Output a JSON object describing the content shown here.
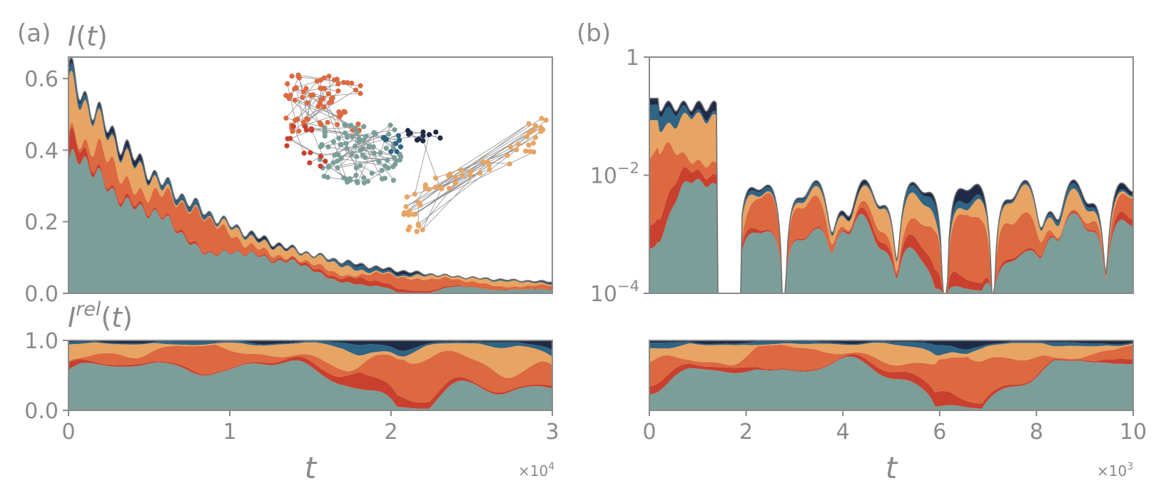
{
  "colors": {
    "teal": "#7b9e99",
    "navy": "#1f2a47",
    "blue": "#2e6484",
    "red": "#c9402e",
    "orange": "#dc6940",
    "lightorange": "#e7a463",
    "axis": "#8a8a8a",
    "edge": "#8f8f8f"
  },
  "chart_data": [
    {
      "id": "a-top",
      "panel_label": "(a)",
      "type": "area",
      "stacked": true,
      "ylabel": "I(t)",
      "ylabel_parts": [
        "I",
        "(",
        "t",
        ")"
      ],
      "xlim": [
        0,
        3
      ],
      "ylim": [
        0,
        0.66
      ],
      "yticks": [
        0.0,
        0.2,
        0.4,
        0.6
      ],
      "ytick_labels": [
        "0.0",
        "0.2",
        "0.4",
        "0.6"
      ],
      "envelope": {
        "peak": 0.62,
        "value_at_end": 0.015
      },
      "series_order": [
        "teal",
        "red",
        "orange",
        "lightorange",
        "blue",
        "navy"
      ],
      "inset": {
        "type": "network",
        "clusters": [
          {
            "color": "orange",
            "nodes": 70
          },
          {
            "color": "teal",
            "nodes": 90
          },
          {
            "color": "red",
            "nodes": 14
          },
          {
            "color": "blue",
            "nodes": 10
          },
          {
            "color": "navy",
            "nodes": 12
          },
          {
            "color": "lightorange",
            "nodes": 60
          }
        ]
      }
    },
    {
      "id": "a-bottom",
      "type": "area",
      "stacked": true,
      "normalized": true,
      "ylabel": "Irel(t)",
      "ylabel_parts": [
        "I",
        "rel",
        "(",
        "t",
        ")"
      ],
      "xlabel": "t",
      "xlim": [
        0,
        3
      ],
      "ylim": [
        0,
        1
      ],
      "yticks": [
        0.0,
        1.0
      ],
      "ytick_labels": [
        "0.0",
        "1.0"
      ],
      "xticks": [
        0,
        1,
        2,
        3
      ],
      "xtick_labels": [
        "0",
        "1",
        "2",
        "3"
      ],
      "x_multiplier": "×10",
      "x_multiplier_exp": "4"
    },
    {
      "id": "b-top",
      "panel_label": "(b)",
      "type": "area",
      "stacked": true,
      "yscale": "log",
      "xlim": [
        0,
        10
      ],
      "ylim": [
        0.0001,
        1
      ],
      "yticks": [
        1,
        0.01,
        0.0001
      ],
      "ytick_labels": [
        {
          "base": "1",
          "exp": ""
        },
        {
          "base": "10",
          "exp": "−2"
        },
        {
          "base": "10",
          "exp": "−4"
        }
      ]
    },
    {
      "id": "b-bottom",
      "type": "area",
      "stacked": true,
      "normalized": true,
      "xlabel": "t",
      "xlim": [
        0,
        10
      ],
      "ylim": [
        0,
        1
      ],
      "xticks": [
        0,
        2,
        4,
        6,
        8,
        10
      ],
      "xtick_labels": [
        "0",
        "2",
        "4",
        "6",
        "8",
        "10"
      ],
      "x_multiplier": "×10",
      "x_multiplier_exp": "3"
    }
  ]
}
